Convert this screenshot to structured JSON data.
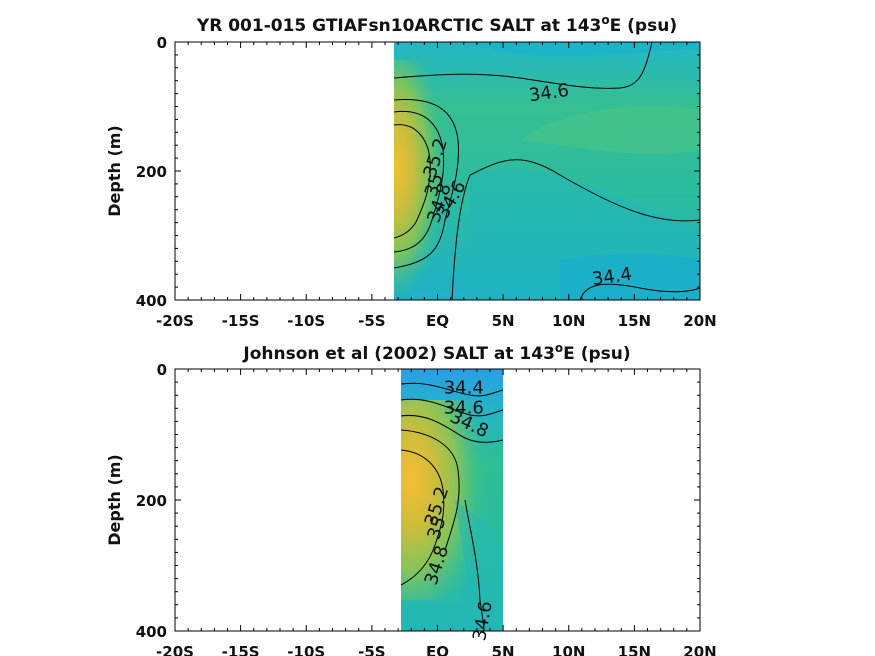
{
  "chart_data": [
    {
      "type": "heatmap",
      "title": "YR 001-015 GTIAFsn10ARCTIC SALT at 143",
      "title_superscript": "o",
      "title_suffix": "E (psu)",
      "ylabel": "Depth (m)",
      "xlabel": "",
      "xlim": [
        -20,
        20
      ],
      "ylim": [
        0,
        400
      ],
      "y_reversed": true,
      "data_xrange": [
        -3.5,
        20
      ],
      "xticks": [
        -20,
        -15,
        -10,
        -5,
        0,
        5,
        10,
        15,
        20
      ],
      "xtick_labels": [
        "-20S",
        "-15S",
        "-10S",
        "-5S",
        "EQ",
        "5N",
        "10N",
        "15N",
        "20N"
      ],
      "yticks": [
        0,
        200,
        400
      ],
      "ytick_labels": [
        "0",
        "200",
        "400"
      ],
      "colormap": [
        "#3aa6e6",
        "#20b3cf",
        "#2fbf95",
        "#63c56b",
        "#a4c145",
        "#e0b93a",
        "#f5c12c"
      ],
      "contour_labels": [
        {
          "text": "34.6",
          "x": 8.5,
          "depth": 80
        },
        {
          "text": "35.2",
          "x": -0.1,
          "depth": 180
        },
        {
          "text": "35",
          "x": -0.2,
          "depth": 222
        },
        {
          "text": "34.8",
          "x": 0.2,
          "depth": 250
        },
        {
          "text": "34.6",
          "x": 1.1,
          "depth": 245
        },
        {
          "text": "34.4",
          "x": 13.3,
          "depth": 365
        }
      ]
    },
    {
      "type": "heatmap",
      "title": "Johnson et al (2002) SALT at 143",
      "title_superscript": "o",
      "title_suffix": "E (psu)",
      "ylabel": "Depth (m)",
      "xlabel": "",
      "xlim": [
        -20,
        20
      ],
      "ylim": [
        0,
        400
      ],
      "y_reversed": true,
      "data_xrange": [
        -2.8,
        5
      ],
      "xticks": [
        -20,
        -15,
        -10,
        -5,
        0,
        5,
        10,
        15,
        20
      ],
      "xtick_labels": [
        "-20S",
        "-15S",
        "-10S",
        "-5S",
        "EQ",
        "5N",
        "10N",
        "15N",
        "20N"
      ],
      "yticks": [
        0,
        200,
        400
      ],
      "ytick_labels": [
        "0",
        "200",
        "400"
      ],
      "colormap": [
        "#3aa6e6",
        "#20b3cf",
        "#2fbf95",
        "#63c56b",
        "#a4c145",
        "#e0b93a",
        "#f5c12c"
      ],
      "contour_labels": [
        {
          "text": "34.4",
          "x": 2.0,
          "depth": 30
        },
        {
          "text": "34.6",
          "x": 2.0,
          "depth": 60
        },
        {
          "text": "34.8",
          "x": 2.4,
          "depth": 85
        },
        {
          "text": "35.2",
          "x": 0.0,
          "depth": 210
        },
        {
          "text": "35",
          "x": 0.0,
          "depth": 243
        },
        {
          "text": "34.8",
          "x": 0.0,
          "depth": 300
        },
        {
          "text": "34.6",
          "x": 3.5,
          "depth": 385
        }
      ]
    }
  ]
}
